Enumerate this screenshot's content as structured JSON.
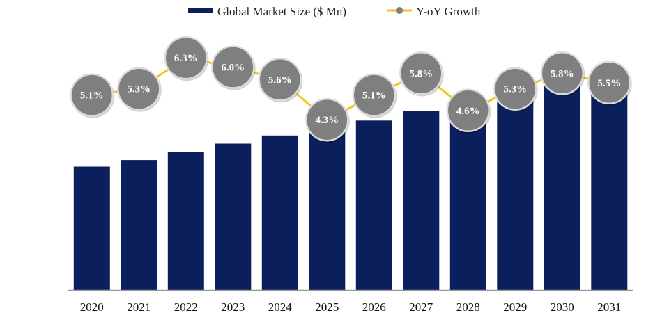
{
  "chart_data": {
    "type": "bar",
    "title": "",
    "xlabel": "",
    "ylabel": "",
    "categories": [
      "2020",
      "2021",
      "2022",
      "2023",
      "2024",
      "2025",
      "2026",
      "2027",
      "2028",
      "2029",
      "2030",
      "2031"
    ],
    "series": [
      {
        "name": "Global Market Size ($ Mn)",
        "kind": "bar",
        "values": [
          100,
          105.3,
          111.9,
          118.6,
          125.2,
          130.6,
          137.3,
          145.3,
          152.0,
          160.0,
          169.3,
          178.6
        ]
      },
      {
        "name": "Y-oY Growth",
        "kind": "line",
        "values": [
          5.1,
          5.3,
          6.3,
          6.0,
          5.6,
          4.3,
          5.1,
          5.8,
          4.6,
          5.3,
          5.8,
          5.5
        ],
        "labels": [
          "5.1%",
          "5.3%",
          "6.3%",
          "6.0%",
          "5.6%",
          "4.3%",
          "5.1%",
          "5.8%",
          "4.6%",
          "5.3%",
          "5.8%",
          "5.5%"
        ]
      }
    ],
    "ylim": [
      0,
      178.6
    ],
    "y2lim": [
      3.0,
      7.0
    ],
    "grid": false,
    "legend_position": "top",
    "colors": {
      "bar": "#0a1f5c",
      "line": "#f5c518",
      "marker": "#7f7f7f",
      "marker_stroke": "#dcdcdc",
      "label": "#ffffff",
      "axis": "#999999"
    }
  }
}
